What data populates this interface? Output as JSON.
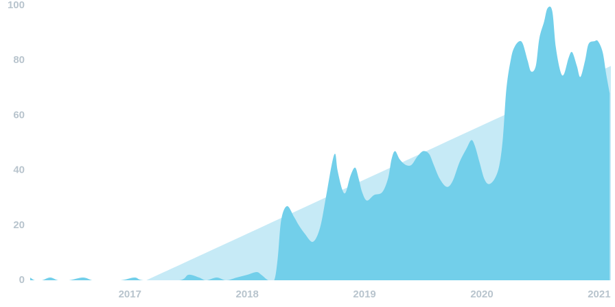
{
  "chart_data": {
    "type": "area",
    "xlim": [
      2016.15,
      2021.1
    ],
    "xticks": [
      2017,
      2018,
      2019,
      2020,
      2021
    ],
    "ylim": [
      0,
      100
    ],
    "yticks": [
      0,
      20,
      40,
      60,
      80,
      100
    ],
    "series": [
      {
        "color": "#c6eaf6",
        "x": [
          2017.14,
          2021.1
        ],
        "values": [
          0,
          78
        ]
      },
      {
        "color": "#72cfea",
        "x": [
          2016.15,
          2016.19,
          2016.25,
          2016.32,
          2016.39,
          2016.48,
          2016.6,
          2016.68,
          2016.74,
          2016.92,
          2017.04,
          2017.12,
          2017.42,
          2017.5,
          2017.59,
          2017.65,
          2017.74,
          2017.82,
          2017.91,
          2018,
          2018.08,
          2018.12,
          2018.18,
          2018.23,
          2018.26,
          2018.29,
          2018.34,
          2018.4,
          2018.44,
          2018.49,
          2018.56,
          2018.62,
          2018.67,
          2018.72,
          2018.75,
          2018.77,
          2018.81,
          2018.84,
          2018.88,
          2018.92,
          2018.95,
          2018.98,
          2019.02,
          2019.08,
          2019.15,
          2019.2,
          2019.23,
          2019.26,
          2019.3,
          2019.35,
          2019.4,
          2019.45,
          2019.5,
          2019.55,
          2019.59,
          2019.64,
          2019.7,
          2019.75,
          2019.81,
          2019.87,
          2019.91,
          2019.94,
          2019.98,
          2020.02,
          2020.06,
          2020.11,
          2020.15,
          2020.18,
          2020.21,
          2020.25,
          2020.28,
          2020.32,
          2020.35,
          2020.39,
          2020.42,
          2020.46,
          2020.49,
          2020.53,
          2020.56,
          2020.6,
          2020.63,
          2020.67,
          2020.7,
          2020.74,
          2020.77,
          2020.81,
          2020.84,
          2020.88,
          2020.91,
          2020.96,
          2020.99,
          2021.03,
          2021.06,
          2021.09
        ],
        "values": [
          1,
          0,
          0,
          1,
          0,
          0,
          1,
          0,
          0,
          0,
          1,
          0,
          0,
          2,
          1,
          0,
          1,
          0,
          1,
          2,
          3,
          2,
          0,
          0,
          8,
          22,
          27,
          23,
          20,
          17,
          14,
          19,
          30,
          42,
          46,
          40,
          33,
          32,
          38,
          41,
          37,
          32,
          29,
          31,
          32,
          37,
          44,
          47,
          44,
          42,
          42,
          45,
          47,
          46,
          42,
          37,
          34,
          36,
          43,
          48,
          51,
          49,
          43,
          37,
          35,
          37,
          42,
          52,
          70,
          81,
          85,
          87,
          86,
          80,
          76,
          78,
          88,
          94,
          99,
          98,
          85,
          76,
          75,
          81,
          83,
          78,
          74,
          80,
          86,
          87,
          87,
          83,
          75,
          68
        ]
      }
    ]
  }
}
